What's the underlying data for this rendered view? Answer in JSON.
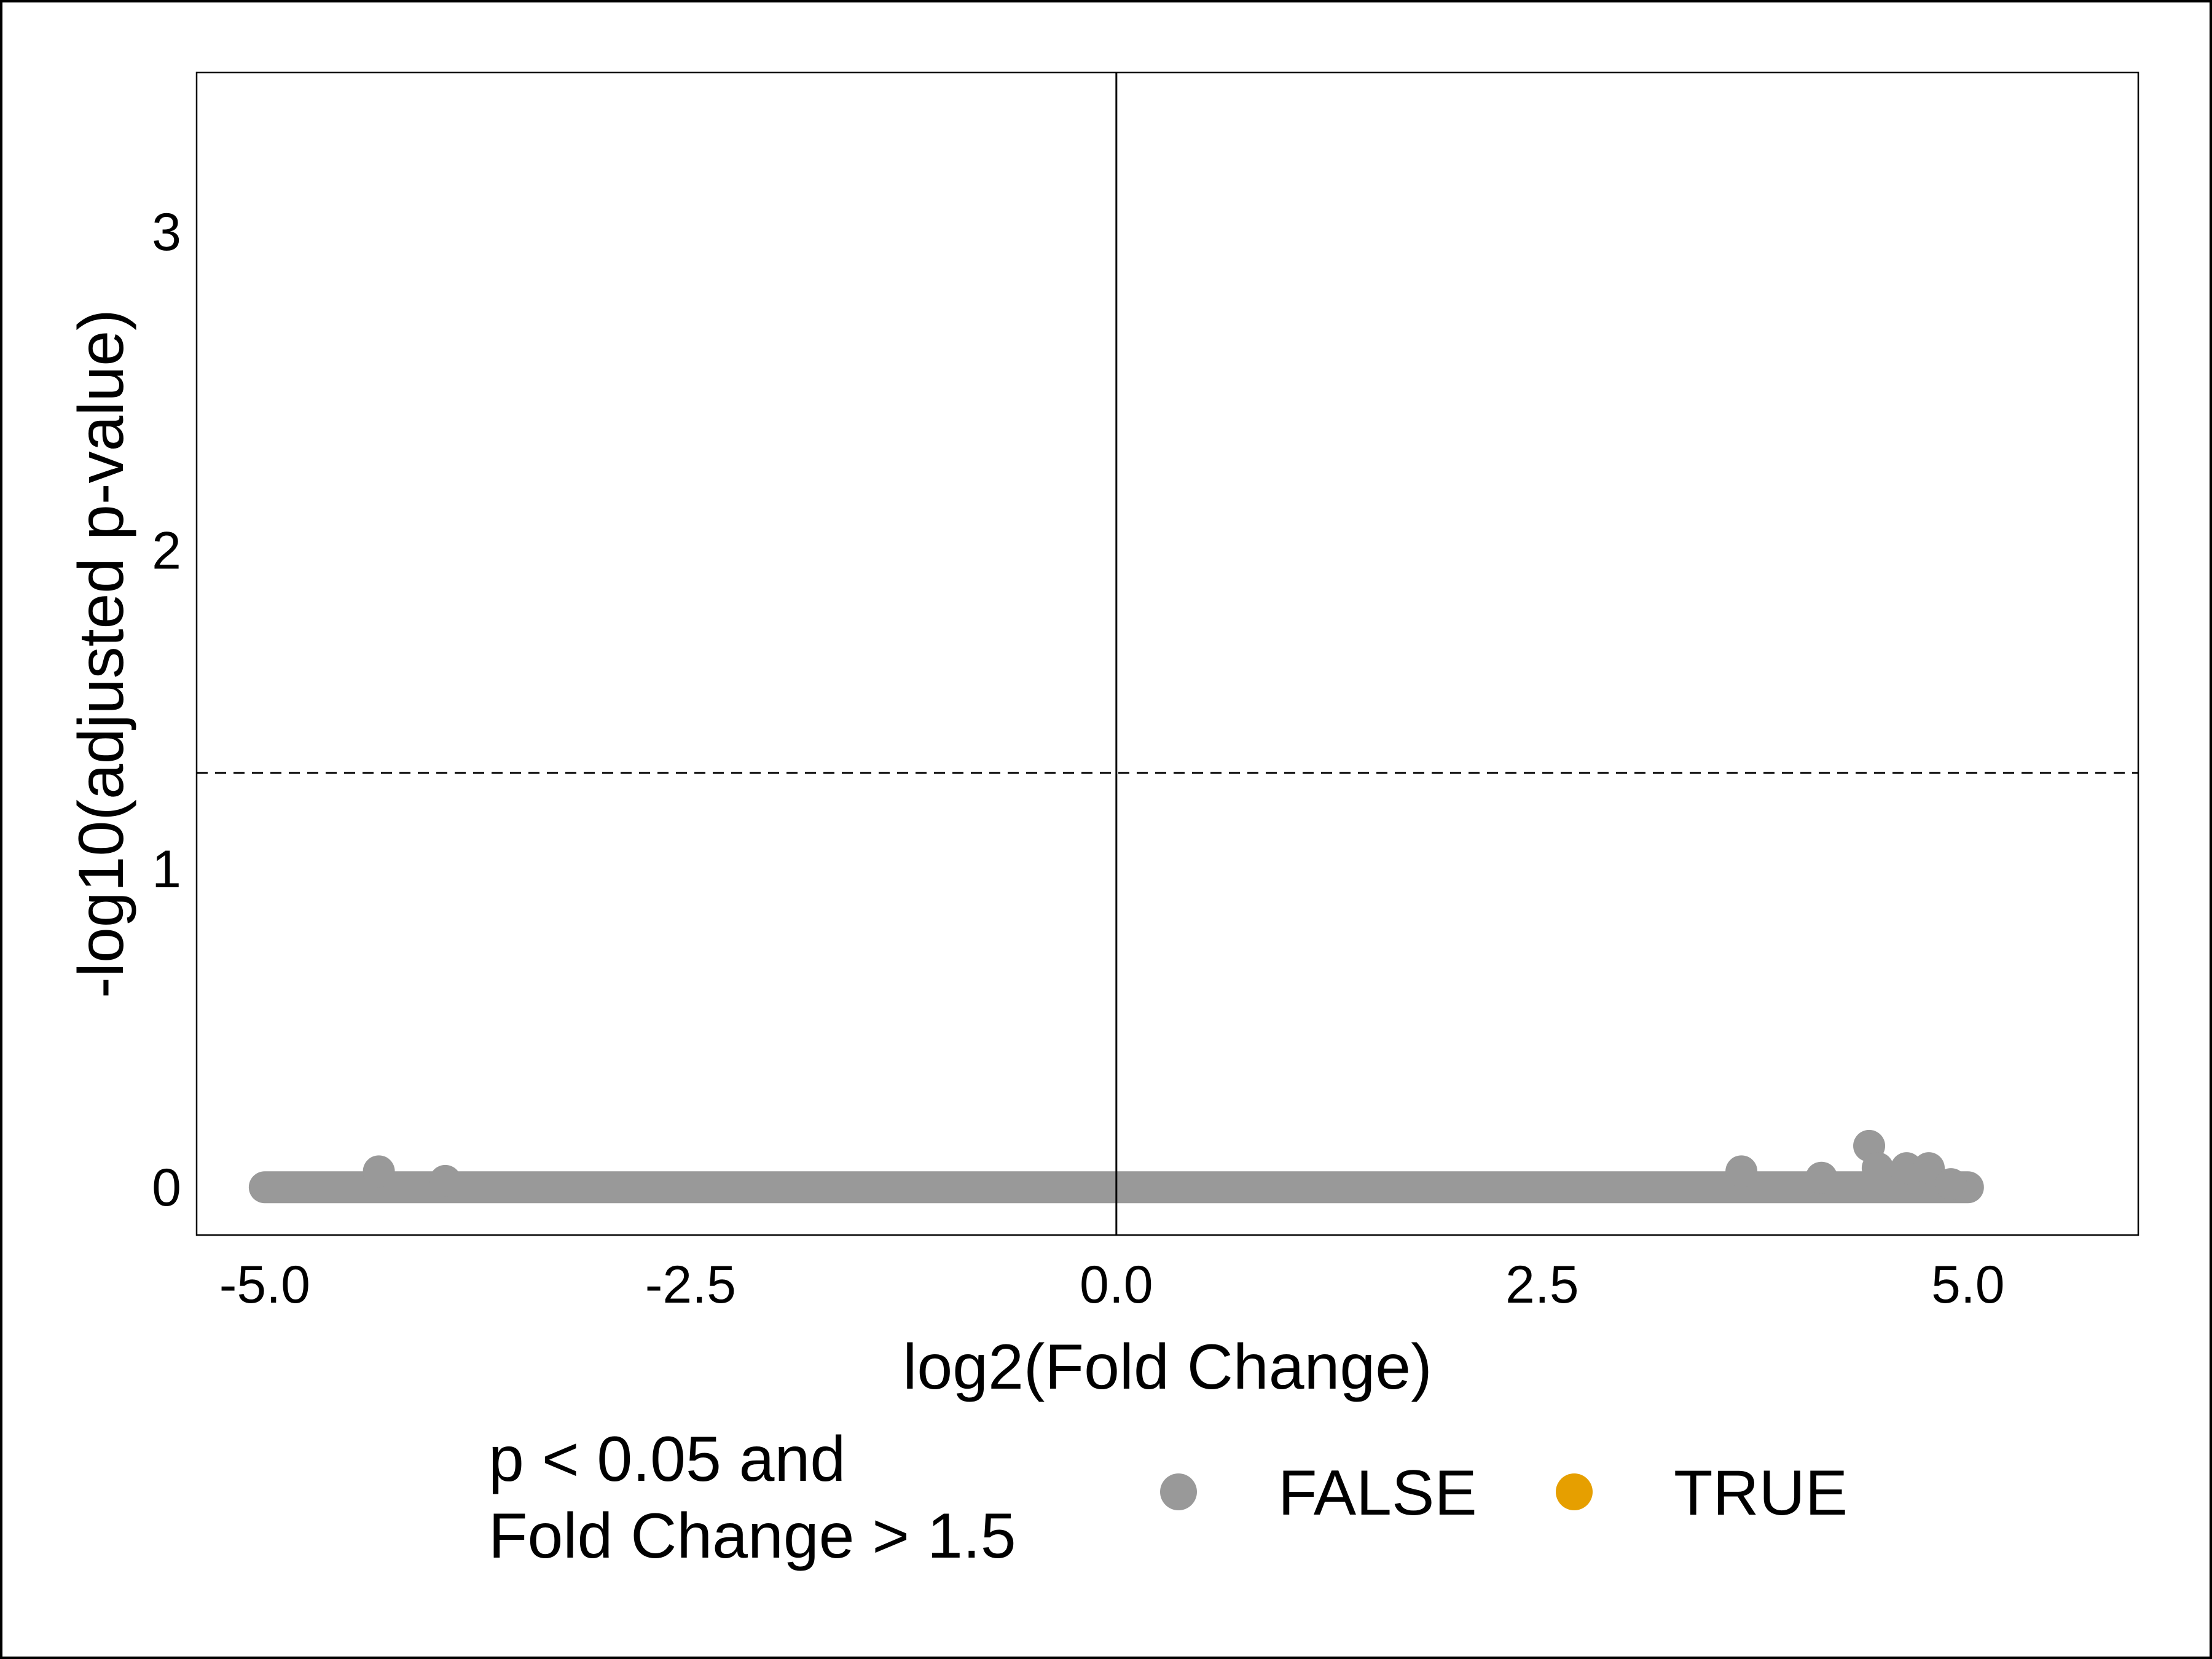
{
  "chart_data": {
    "type": "scatter",
    "title": "",
    "xlabel": "log2(Fold Change)",
    "ylabel": "-log10(adjusted p-value)",
    "xlim": [
      -5.4,
      6.0
    ],
    "ylim": [
      -0.15,
      3.5
    ],
    "x_ticks": [
      {
        "value": -5.0,
        "label": "-5.0"
      },
      {
        "value": -2.5,
        "label": "-2.5"
      },
      {
        "value": 0.0,
        "label": "0.0"
      },
      {
        "value": 2.5,
        "label": "2.5"
      },
      {
        "value": 5.0,
        "label": "5.0"
      }
    ],
    "y_ticks": [
      {
        "value": 0,
        "label": "0"
      },
      {
        "value": 1,
        "label": "1"
      },
      {
        "value": 2,
        "label": "2"
      },
      {
        "value": 3,
        "label": "3"
      }
    ],
    "grid": false,
    "reference_lines": {
      "vertical_x": 0.0,
      "horizontal_dashed_y": 1.301
    },
    "legend": {
      "title_lines": [
        "p < 0.05 and",
        "Fold Change > 1.5"
      ],
      "placement": "bottom",
      "entries": [
        {
          "label": "FALSE",
          "color": "#999999"
        },
        {
          "label": "TRUE",
          "color": "#E69F00"
        }
      ]
    },
    "series": [
      {
        "name": "FALSE",
        "color": "#999999",
        "dense_band": {
          "x_from": -5.0,
          "x_to": 5.0,
          "y": 0.0
        },
        "points": [
          {
            "x": -4.33,
            "y": 0.05
          },
          {
            "x": -3.94,
            "y": 0.02
          },
          {
            "x": 3.67,
            "y": 0.05
          },
          {
            "x": 4.14,
            "y": 0.03
          },
          {
            "x": 4.42,
            "y": 0.13
          },
          {
            "x": 4.47,
            "y": 0.06
          },
          {
            "x": 4.64,
            "y": 0.06
          },
          {
            "x": 4.77,
            "y": 0.06
          },
          {
            "x": 4.9,
            "y": 0.01
          }
        ]
      },
      {
        "name": "TRUE",
        "color": "#E69F00",
        "points": []
      }
    ]
  }
}
